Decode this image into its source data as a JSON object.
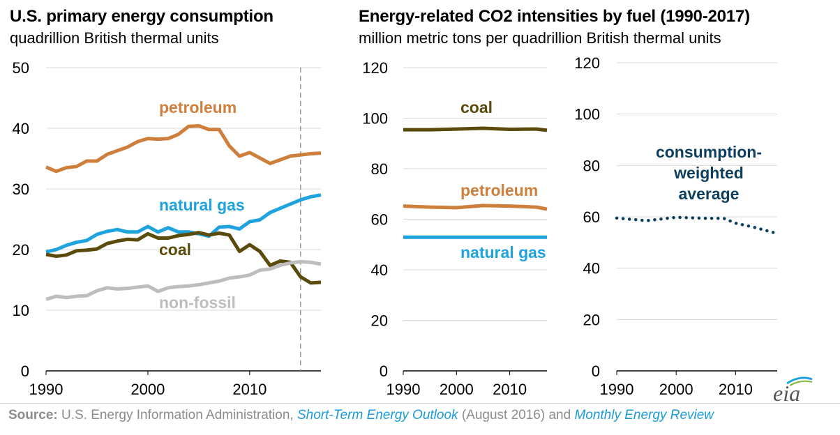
{
  "charts": {
    "left_title": "U.S. primary energy consumption",
    "left_subtitle": "quadrillion British thermal units",
    "right_title": "Energy-related CO2 intensities by fuel (1990-2017)",
    "right_subtitle": "million metric tons per quadrillion British thermal units"
  },
  "footer": {
    "source_label": "Source:",
    "source_text": "U.S. Energy Information Administration,",
    "link1": "Short-Term Energy Outlook",
    "mid_text": "(August 2016) and",
    "link2": "Monthly Energy Review"
  },
  "logo": {
    "text": "eia"
  },
  "colors": {
    "petroleum": "#cf7f3c",
    "natural_gas": "#1fa3de",
    "coal": "#5a4a0b",
    "non_fossil": "#bdbdbd",
    "weighted": "#0c3f5e",
    "grid": "#d9d9d9",
    "forecast_line": "#999999"
  },
  "chart_data": [
    {
      "type": "line",
      "title": "U.S. primary energy consumption",
      "subtitle": "quadrillion British thermal units",
      "xlim": [
        1990,
        2017
      ],
      "ylim": [
        0,
        50
      ],
      "yticks": [
        0,
        10,
        20,
        30,
        40,
        50
      ],
      "xticks": [
        1990,
        2000,
        2010
      ],
      "forecast_start": 2015,
      "grid": true,
      "x": [
        1990,
        1991,
        1992,
        1993,
        1994,
        1995,
        1996,
        1997,
        1998,
        1999,
        2000,
        2001,
        2002,
        2003,
        2004,
        2005,
        2006,
        2007,
        2008,
        2009,
        2010,
        2011,
        2012,
        2013,
        2014,
        2015,
        2016,
        2017
      ],
      "series": [
        {
          "name": "petroleum",
          "color_key": "petroleum",
          "values": [
            33.6,
            32.9,
            33.5,
            33.7,
            34.6,
            34.6,
            35.7,
            36.3,
            36.9,
            37.8,
            38.3,
            38.2,
            38.3,
            39.0,
            40.3,
            40.4,
            39.8,
            39.8,
            37.1,
            35.4,
            36.0,
            35.1,
            34.2,
            34.8,
            35.4,
            35.6,
            35.8,
            35.9
          ]
        },
        {
          "name": "natural gas",
          "color_key": "natural_gas",
          "values": [
            19.6,
            20.0,
            20.7,
            21.2,
            21.5,
            22.5,
            23.0,
            23.3,
            22.9,
            22.9,
            23.8,
            22.9,
            23.6,
            22.9,
            22.9,
            22.6,
            22.2,
            23.7,
            23.8,
            23.4,
            24.6,
            24.9,
            26.1,
            26.8,
            27.5,
            28.2,
            28.7,
            29.0
          ]
        },
        {
          "name": "coal",
          "color_key": "coal",
          "values": [
            19.2,
            18.9,
            19.1,
            19.8,
            19.9,
            20.1,
            21.0,
            21.4,
            21.7,
            21.6,
            22.6,
            21.9,
            21.9,
            22.3,
            22.5,
            22.8,
            22.4,
            22.7,
            22.4,
            19.7,
            20.8,
            19.7,
            17.4,
            18.1,
            17.9,
            15.5,
            14.5,
            14.6
          ]
        },
        {
          "name": "non-fossil",
          "color_key": "non_fossil",
          "values": [
            11.8,
            12.3,
            12.1,
            12.3,
            12.4,
            13.2,
            13.7,
            13.5,
            13.6,
            13.8,
            14.0,
            13.1,
            13.7,
            13.9,
            14.0,
            14.2,
            14.5,
            14.8,
            15.3,
            15.5,
            15.8,
            16.6,
            16.8,
            17.4,
            17.8,
            18.0,
            17.9,
            17.6
          ]
        }
      ],
      "labels": [
        "petroleum",
        "natural gas",
        "coal",
        "non-fossil"
      ]
    },
    {
      "type": "line",
      "title": "Energy-related CO2 intensities by fuel (1990-2017)",
      "subtitle": "million metric tons per quadrillion British thermal units",
      "xlim": [
        1990,
        2017
      ],
      "ylim": [
        0,
        120
      ],
      "yticks": [
        0,
        20,
        40,
        60,
        80,
        100,
        120
      ],
      "xticks": [
        1990,
        2000,
        2010
      ],
      "grid": true,
      "x": [
        1990,
        1995,
        2000,
        2005,
        2010,
        2015,
        2017
      ],
      "series": [
        {
          "name": "coal",
          "color_key": "coal",
          "values": [
            95.4,
            95.4,
            95.7,
            96.0,
            95.6,
            95.7,
            95.2
          ]
        },
        {
          "name": "petroleum",
          "color_key": "petroleum",
          "values": [
            65.2,
            64.8,
            64.6,
            65.4,
            65.2,
            64.8,
            64.0
          ]
        },
        {
          "name": "natural gas",
          "color_key": "natural_gas",
          "values": [
            52.9,
            52.9,
            52.9,
            52.9,
            52.9,
            52.9,
            52.9
          ]
        }
      ],
      "labels": [
        "coal",
        "petroleum",
        "natural gas"
      ]
    },
    {
      "type": "line",
      "xlim": [
        1990,
        2017
      ],
      "ylim": [
        0,
        120
      ],
      "yticks": [
        0,
        20,
        40,
        60,
        80,
        100,
        120
      ],
      "xticks": [
        1990,
        2000,
        2010
      ],
      "grid": true,
      "line_style": "dotted",
      "x": [
        1990,
        1995,
        2000,
        2005,
        2008,
        2010,
        2013,
        2017
      ],
      "series": [
        {
          "name": "consumption-weighted average",
          "color_key": "weighted",
          "values": [
            59.5,
            58.5,
            59.8,
            59.4,
            59.4,
            57.5,
            56.0,
            53.5
          ]
        }
      ],
      "label_lines": [
        "consumption-",
        "weighted",
        "average"
      ]
    }
  ]
}
